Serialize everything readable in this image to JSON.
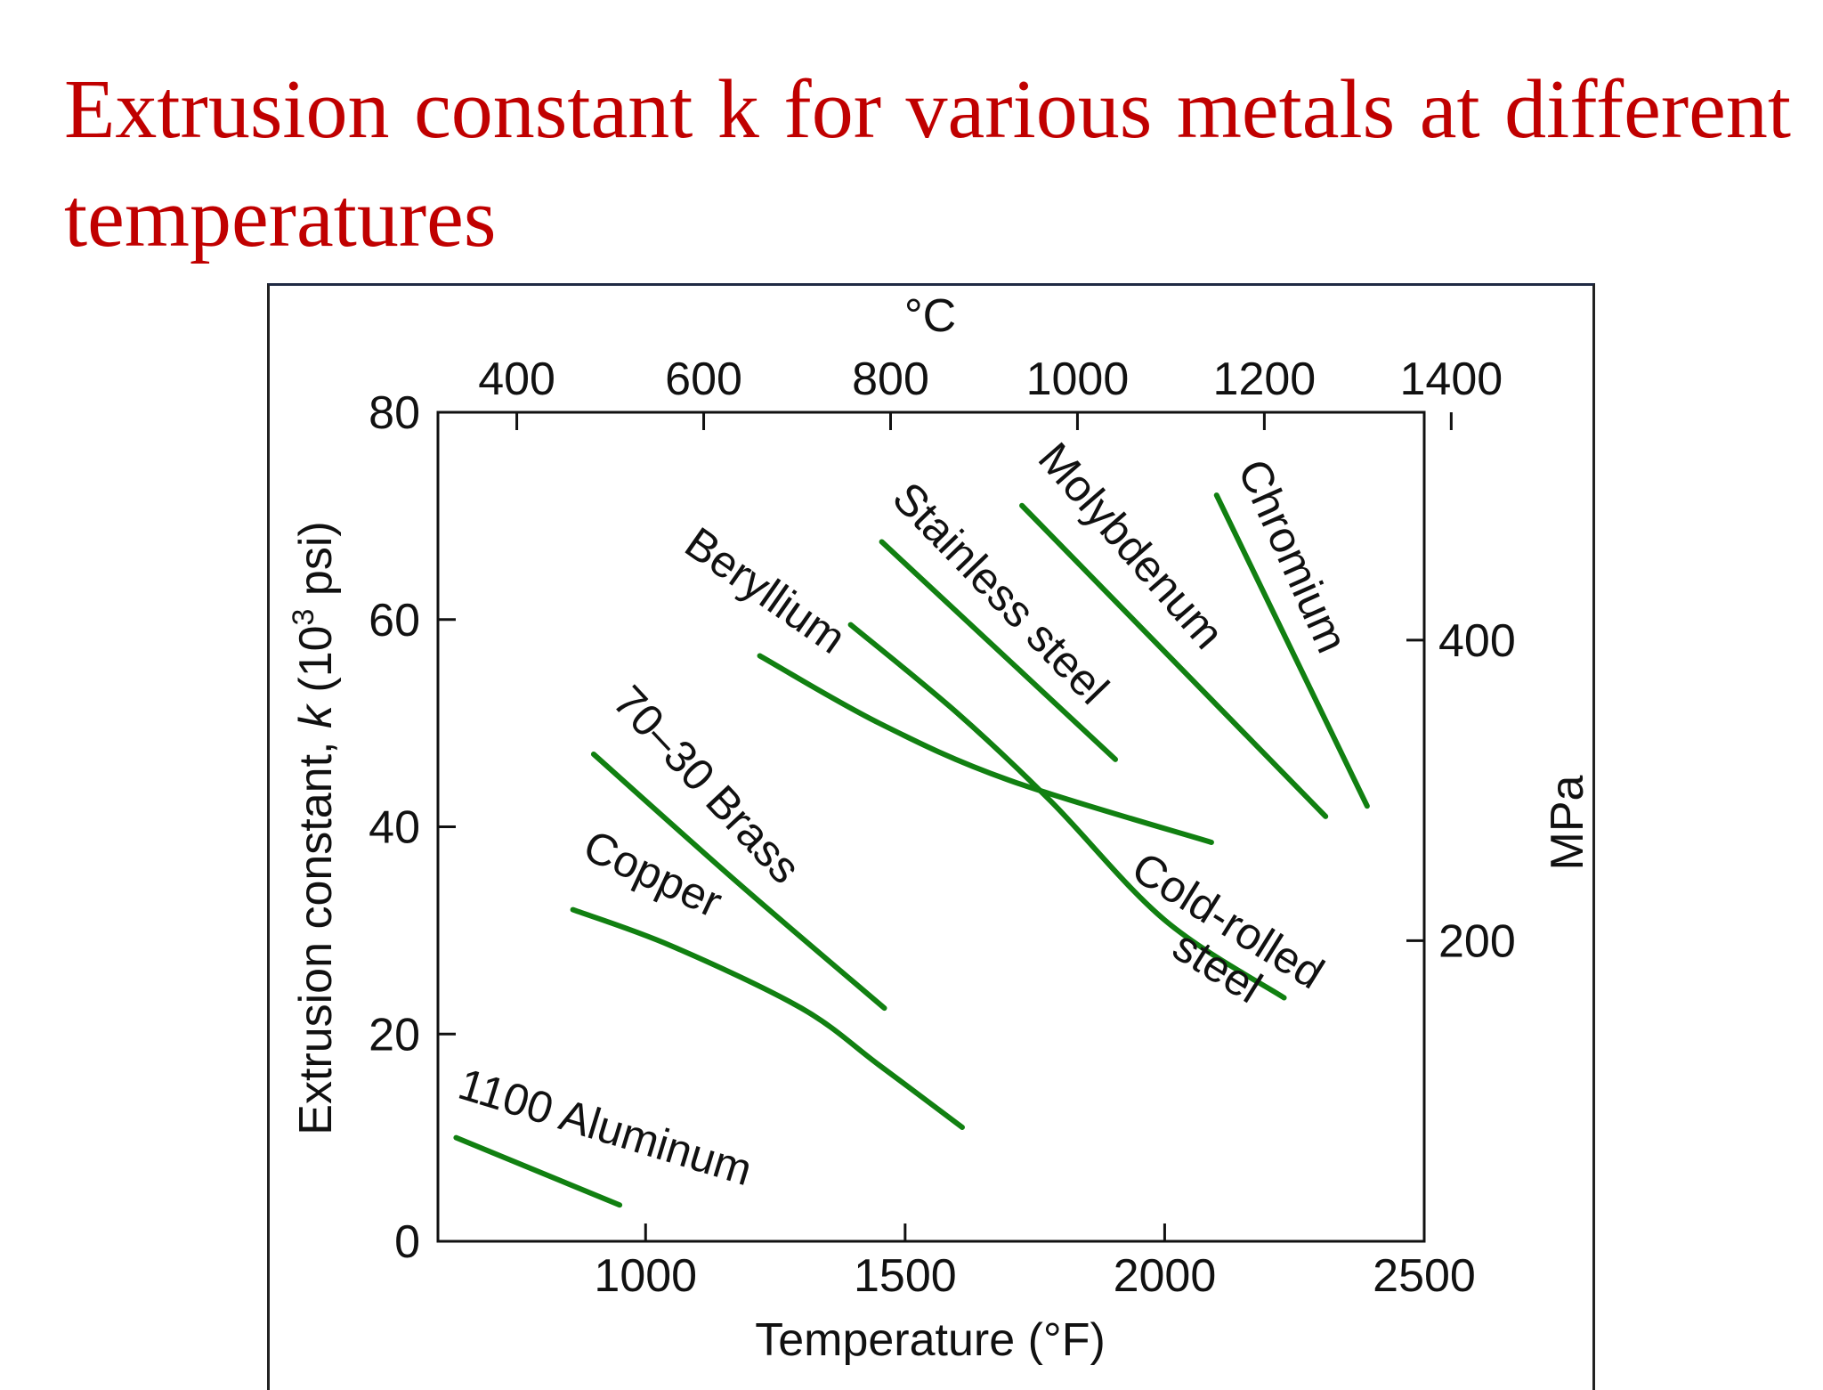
{
  "title": "Extrusion constant k for various metals at different temperatures",
  "colors": {
    "title": "#c00000",
    "series": "#118011",
    "axis": "#111111"
  },
  "chart_data": {
    "type": "line",
    "xlabel": "Temperature (°F)",
    "ylabel_main": "Extrusion constant, ",
    "ylabel_italic": "k",
    "ylabel_unit_pre": " (10",
    "ylabel_sup": "3",
    "ylabel_unit_post": " psi)",
    "x2label": "°C",
    "y2label": "MPa",
    "xlim": [
      600,
      2500
    ],
    "ylim": [
      0,
      80
    ],
    "x2lim": [
      315.6,
      1371.1
    ],
    "y2lim": [
      0,
      551.6
    ],
    "xticks": [
      1000,
      1500,
      2000,
      2500
    ],
    "yticks": [
      0,
      20,
      40,
      60,
      80
    ],
    "x2ticks": [
      400,
      600,
      800,
      1000,
      1200,
      1400
    ],
    "y2ticks": [
      200,
      400
    ],
    "grid": false,
    "series": [
      {
        "name": "1100 Aluminum",
        "x": [
          635,
          950
        ],
        "y": [
          10,
          3.5
        ]
      },
      {
        "name": "Copper",
        "x": [
          860,
          1050,
          1300,
          1450,
          1610
        ],
        "y": [
          32,
          28.5,
          22.5,
          17,
          11
        ]
      },
      {
        "name": "70–30 Brass",
        "x": [
          900,
          1180,
          1460
        ],
        "y": [
          47,
          34.5,
          22.5
        ]
      },
      {
        "name": "Beryllium",
        "x": [
          1220,
          1450,
          1700,
          2090
        ],
        "y": [
          56.5,
          50,
          44.5,
          38.5
        ]
      },
      {
        "name": "Cold-rolled steel",
        "x": [
          1395,
          1600,
          1780,
          2000,
          2230
        ],
        "y": [
          59.5,
          51,
          42.5,
          31,
          23.5
        ]
      },
      {
        "name": "Stainless steel",
        "x": [
          1455,
          1905
        ],
        "y": [
          67.5,
          46.5
        ]
      },
      {
        "name": "Molybdenum",
        "x": [
          1725,
          2310
        ],
        "y": [
          71,
          41
        ]
      },
      {
        "name": "Chromium",
        "x": [
          2100,
          2390
        ],
        "y": [
          72,
          42
        ]
      }
    ]
  }
}
